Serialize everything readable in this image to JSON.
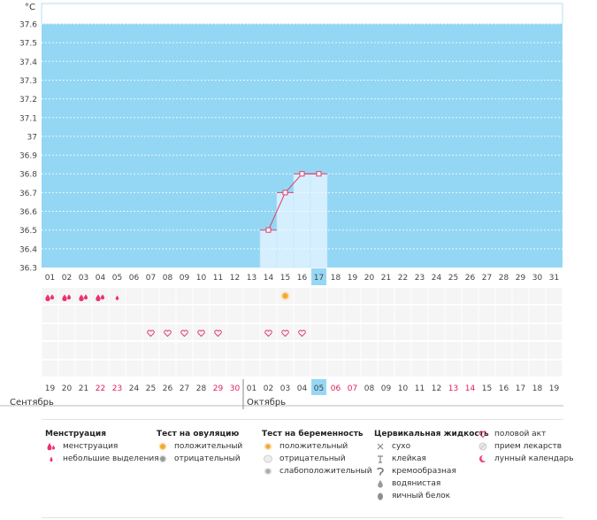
{
  "chart_data": {
    "type": "line",
    "ylabel": "°C",
    "ylim": [
      36.3,
      37.6
    ],
    "yticks": [
      "36.3",
      "36.4",
      "36.5",
      "36.6",
      "36.7",
      "36.8",
      "36.9",
      "37",
      "37.1",
      "37.2",
      "37.3",
      "37.4",
      "37.5",
      "37.6"
    ],
    "top_days": [
      "01",
      "02",
      "03",
      "04",
      "05",
      "06",
      "07",
      "08",
      "09",
      "10",
      "11",
      "12",
      "13",
      "14",
      "15",
      "16",
      "17",
      "18",
      "19",
      "20",
      "21",
      "22",
      "23",
      "24",
      "25",
      "26",
      "27",
      "28",
      "29",
      "30",
      "31"
    ],
    "highlight_top_day": "17",
    "series": [
      {
        "x": [
          "14",
          "15",
          "16",
          "17"
        ],
        "values": [
          36.5,
          36.7,
          36.8,
          36.8
        ]
      }
    ],
    "menstruation_days": [
      "01",
      "02",
      "03",
      "04"
    ],
    "spotting_days": [
      "05"
    ],
    "ovulation_positive_days": [
      "15"
    ],
    "intercourse_days": [
      "07",
      "08",
      "09",
      "10",
      "11",
      "14",
      "15",
      "16"
    ],
    "calendar_days": [
      {
        "d": "19",
        "red": false
      },
      {
        "d": "20",
        "red": false
      },
      {
        "d": "21",
        "red": false
      },
      {
        "d": "22",
        "red": true
      },
      {
        "d": "23",
        "red": true
      },
      {
        "d": "24",
        "red": false
      },
      {
        "d": "25",
        "red": false
      },
      {
        "d": "26",
        "red": false
      },
      {
        "d": "27",
        "red": false
      },
      {
        "d": "28",
        "red": false
      },
      {
        "d": "29",
        "red": true
      },
      {
        "d": "30",
        "red": true
      },
      {
        "d": "01",
        "red": false
      },
      {
        "d": "02",
        "red": false
      },
      {
        "d": "03",
        "red": false
      },
      {
        "d": "04",
        "red": false
      },
      {
        "d": "05",
        "red": false,
        "highlight": true
      },
      {
        "d": "06",
        "red": true
      },
      {
        "d": "07",
        "red": true
      },
      {
        "d": "08",
        "red": false
      },
      {
        "d": "09",
        "red": false
      },
      {
        "d": "10",
        "red": false
      },
      {
        "d": "11",
        "red": false
      },
      {
        "d": "12",
        "red": false
      },
      {
        "d": "13",
        "red": true
      },
      {
        "d": "14",
        "red": true
      },
      {
        "d": "15",
        "red": false
      },
      {
        "d": "16",
        "red": false
      },
      {
        "d": "17",
        "red": false
      },
      {
        "d": "18",
        "red": false
      },
      {
        "d": "19",
        "red": false
      }
    ],
    "months": [
      "Сентябрь",
      "Октябрь"
    ],
    "month_break_index": 12,
    "grid": true,
    "colors": {
      "plot": "#94d7f4",
      "column": "#d5efff",
      "line": "#dd3f6b",
      "red_text": "#dd1f55",
      "highlight": "#96d8f4"
    }
  },
  "legend": {
    "menstruation": {
      "title": "Менструация",
      "items": [
        "менструация",
        "небольшие выделения"
      ]
    },
    "ovulation": {
      "title": "Тест на овуляцию",
      "items": [
        "положительный",
        "отрицательный"
      ]
    },
    "pregnancy": {
      "title": "Тест на беременность",
      "items": [
        "положительный",
        "отрицательный",
        "слабоположительный"
      ]
    },
    "fluid": {
      "title": "Цервикальная жидкость",
      "items": [
        "сухо",
        "клейкая",
        "кремообразная",
        "водянистая",
        "яичный белок"
      ]
    },
    "other": {
      "items": [
        "половой акт",
        "прием лекарств",
        "лунный календарь"
      ]
    }
  }
}
